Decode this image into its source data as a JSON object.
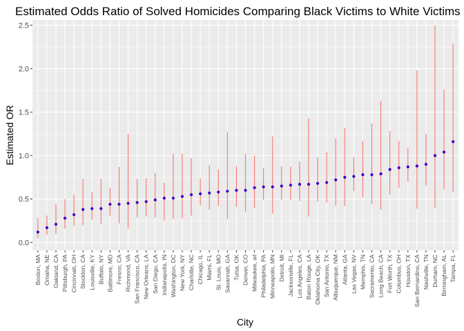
{
  "chart_data": {
    "type": "scatter",
    "title": "Estimated Odds Ratio of Solved Homicides Comparing Black Victims to White Victims",
    "xlabel": "City",
    "ylabel": "Estimated OR",
    "ylim": [
      -0.09,
      2.56
    ],
    "yticks": [
      "0.0",
      "0.5",
      "1.0",
      "1.5",
      "2.0",
      "2.5"
    ],
    "grid": true,
    "colors": {
      "point": "#3a00cc",
      "errorbar": "#f8766d",
      "panel": "#ebebeb",
      "grid": "#ffffff"
    },
    "categories": [
      "Boston, MA",
      "Omaha, NE",
      "Oakland, CA",
      "Pittsburgh, PA",
      "Cincinnati, OH",
      "Stockton, CA",
      "Louisville, KY",
      "Buffalo, NY",
      "Baltimore, MD",
      "Fresno, CA",
      "Richmond, VA",
      "San Francisco, CA",
      "New Orleans, LA",
      "San Diego, CA",
      "Indianapolis, IN",
      "Washington, DC",
      "New York, NY",
      "Charlotte, NC",
      "Chicago, IL",
      "Miami, FL",
      "St. Louis, MO",
      "Savannah, GA",
      "Tulsa, OK",
      "Denver, CO",
      "Milwaukee, wI",
      "Philadelphia, PA",
      "Minneapolis, MN",
      "Detroit, MI",
      "Jacksonville, FL",
      "Los Angeles, CA",
      "Baton Rouge, LA",
      "Oklahoma City, OK",
      "San Antonio, TX",
      "Albuquerque, NM",
      "Atlanta, GA",
      "Las Vegas, NV",
      "Memphis, TN",
      "Sacramento, CA",
      "Long Beach, CA",
      "Fort Worth, TX",
      "Columbus, OH",
      "Houston, TX",
      "San Bernardino, CA",
      "Nashville, TN",
      "Durham, NC",
      "Birmingham, AL",
      "Tampa, FL"
    ],
    "estimate": [
      0.12,
      0.17,
      0.21,
      0.28,
      0.32,
      0.38,
      0.39,
      0.39,
      0.44,
      0.44,
      0.45,
      0.46,
      0.47,
      0.49,
      0.51,
      0.51,
      0.53,
      0.55,
      0.56,
      0.57,
      0.58,
      0.59,
      0.6,
      0.6,
      0.63,
      0.64,
      0.64,
      0.65,
      0.66,
      0.67,
      0.67,
      0.68,
      0.69,
      0.72,
      0.75,
      0.76,
      0.78,
      0.78,
      0.79,
      0.84,
      0.86,
      0.87,
      0.88,
      0.9,
      1.0,
      1.04,
      1.16
    ],
    "lower": [
      0.05,
      0.09,
      0.1,
      0.16,
      0.19,
      0.2,
      0.26,
      0.21,
      0.31,
      0.22,
      0.16,
      0.29,
      0.3,
      0.29,
      0.25,
      0.27,
      0.28,
      0.31,
      0.43,
      0.38,
      0.42,
      0.27,
      0.41,
      0.35,
      0.4,
      0.49,
      0.33,
      0.49,
      0.49,
      0.48,
      0.3,
      0.47,
      0.46,
      0.42,
      0.42,
      0.59,
      0.52,
      0.44,
      0.38,
      0.55,
      0.63,
      0.7,
      0.39,
      0.65,
      0.4,
      0.61,
      0.58
    ],
    "upper": [
      0.28,
      0.31,
      0.44,
      0.5,
      0.55,
      0.73,
      0.58,
      0.73,
      0.63,
      0.87,
      1.25,
      0.73,
      0.74,
      0.8,
      0.69,
      1.02,
      1.02,
      0.97,
      0.74,
      0.89,
      0.84,
      1.27,
      0.88,
      1.02,
      1.0,
      0.86,
      1.22,
      0.88,
      0.87,
      0.93,
      1.43,
      0.98,
      1.04,
      1.2,
      1.32,
      0.98,
      1.17,
      1.37,
      1.63,
      1.28,
      1.17,
      1.09,
      1.98,
      1.25,
      2.5,
      1.76,
      2.29
    ]
  }
}
